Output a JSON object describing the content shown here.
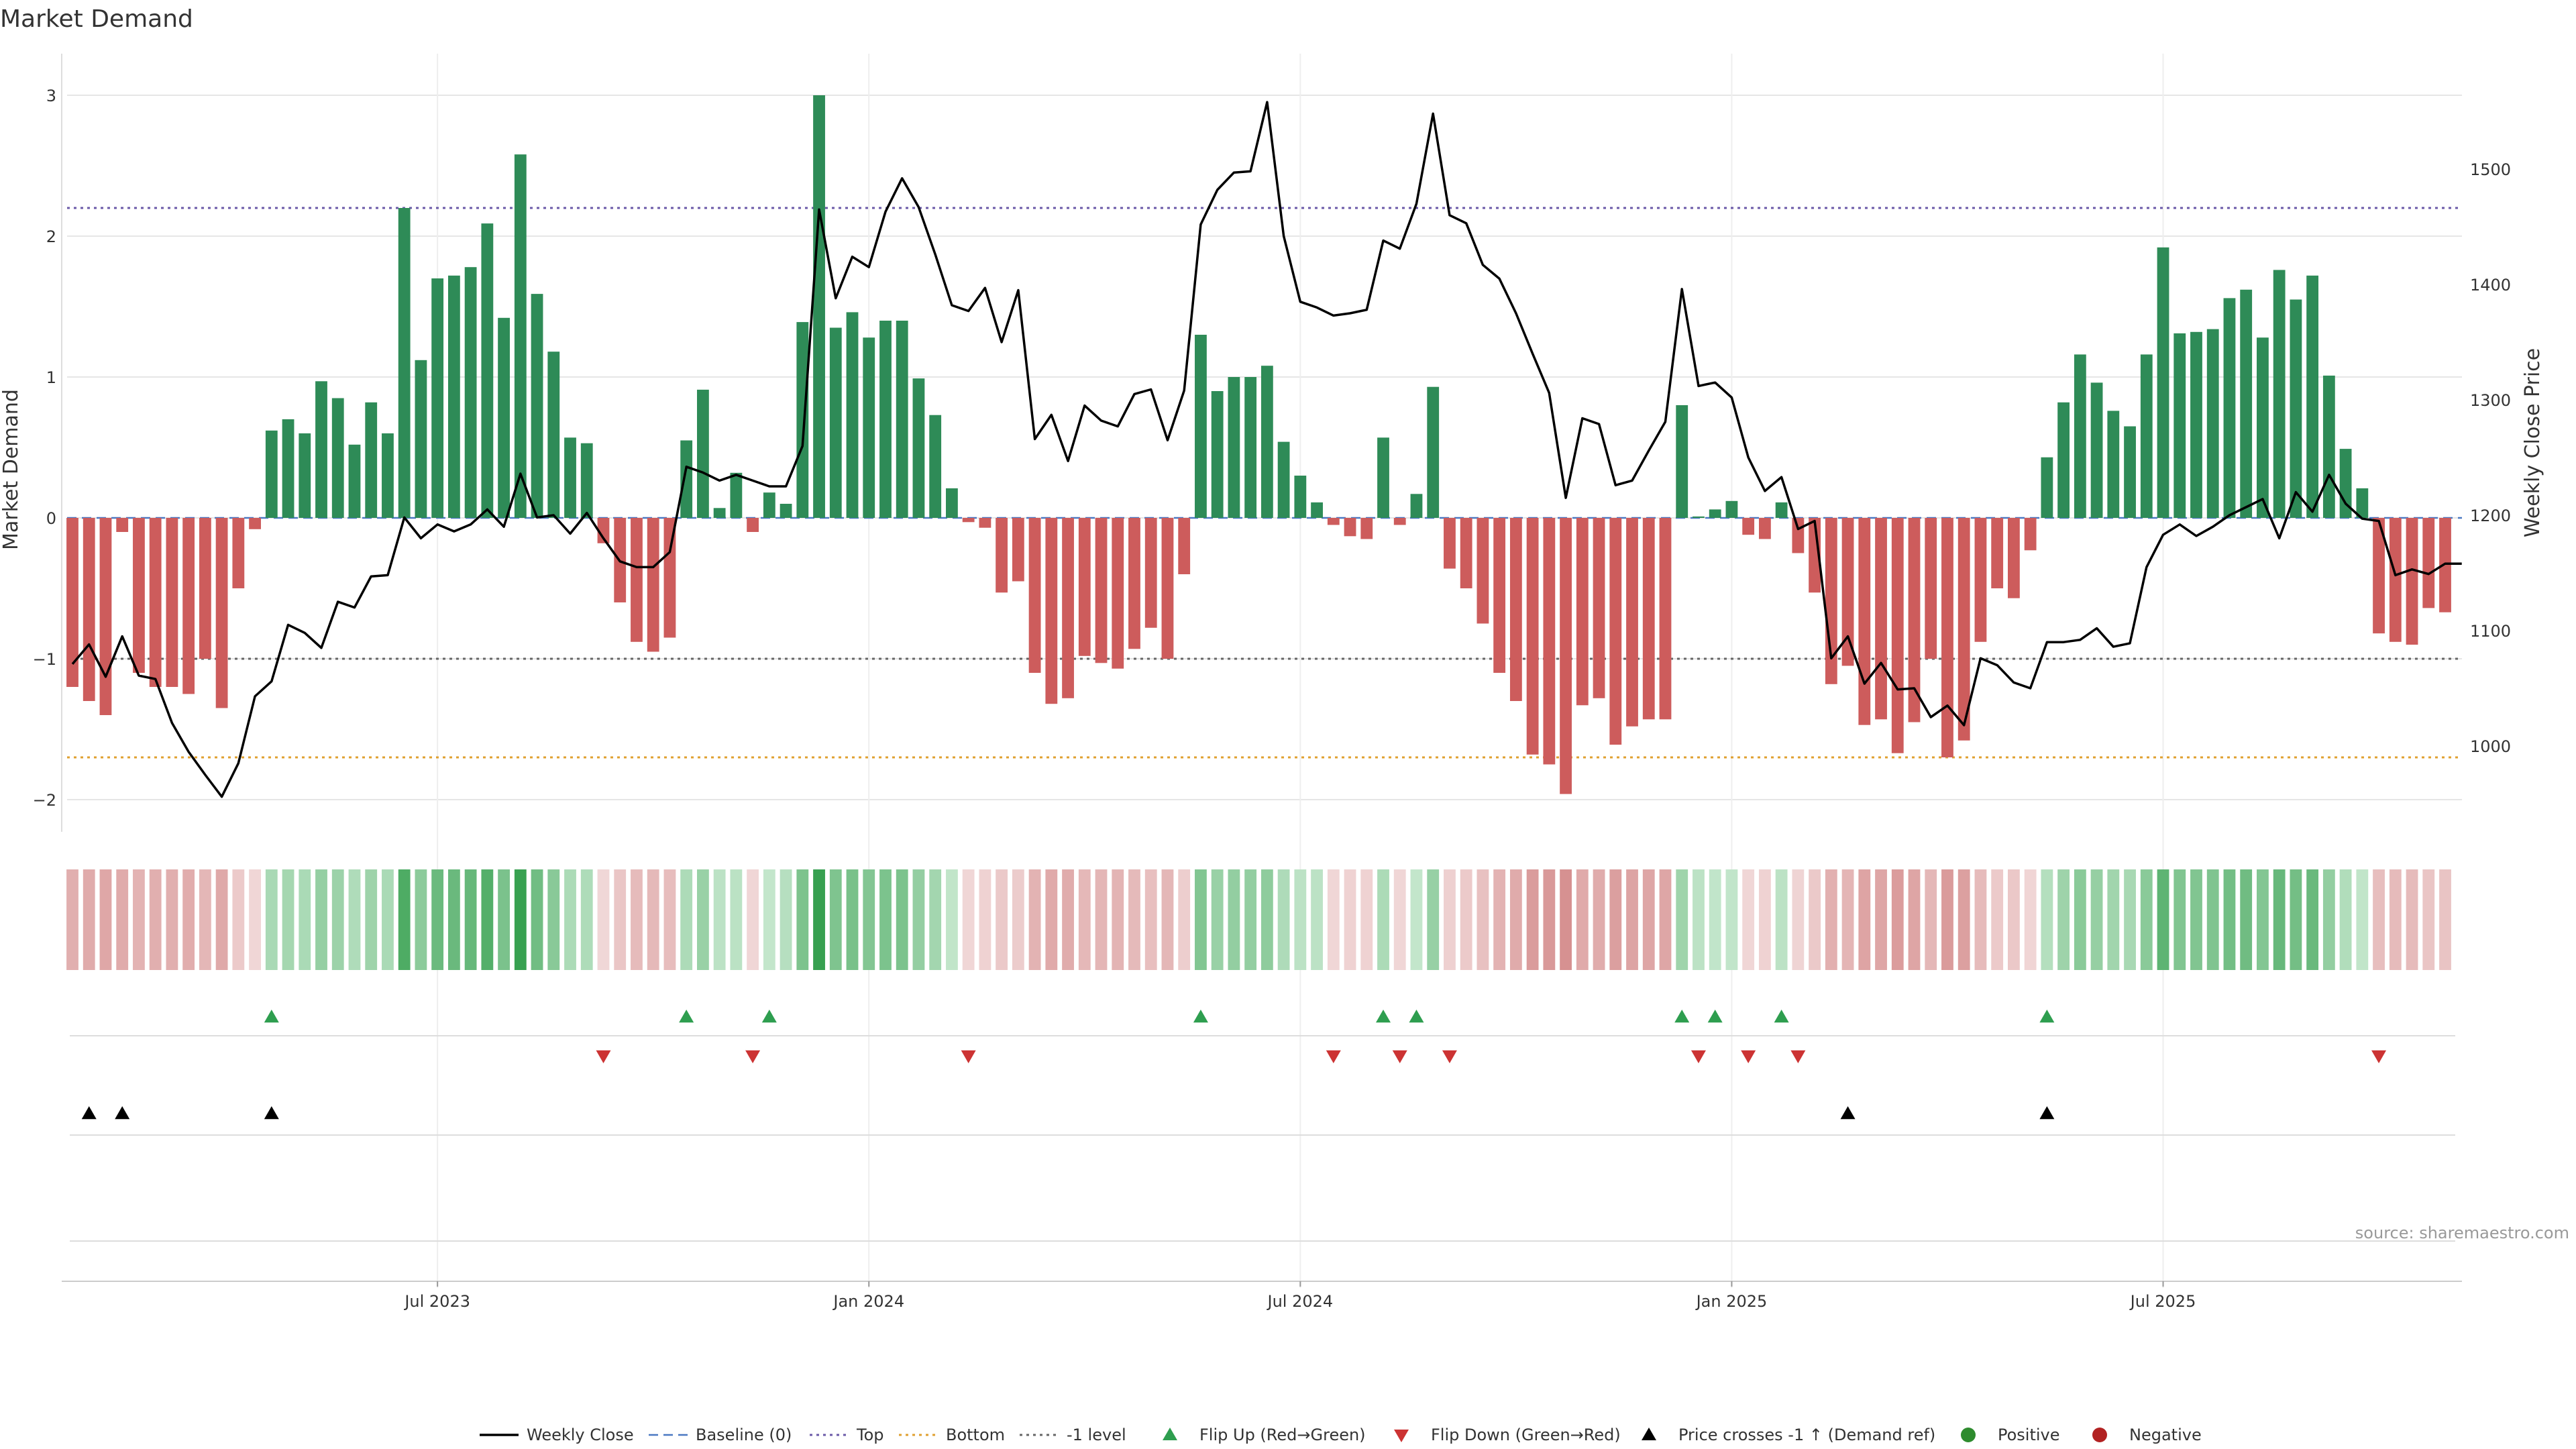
{
  "chart_data": {
    "type": "bar",
    "title": "Market Demand",
    "ylabel": "Market Demand",
    "y2label": "Weekly Close Price",
    "ylim": [
      -2.25,
      3.15
    ],
    "y2lim": [
      938,
      1578
    ],
    "yticks": [
      3,
      2,
      1,
      0,
      -1,
      -2
    ],
    "yticklabels": [
      "3",
      "2",
      "1",
      "0",
      "−1",
      "−2"
    ],
    "y2ticks": [
      1500,
      1400,
      1300,
      1200,
      1100,
      1000
    ],
    "y2ticklabels": [
      "1500",
      "1400",
      "1300",
      "1200",
      "1100",
      "1000"
    ],
    "xticks": [
      {
        "index": 22,
        "label": "Jul 2023"
      },
      {
        "index": 48,
        "label": "Jan 2024"
      },
      {
        "index": 74,
        "label": "Jul 2024"
      },
      {
        "index": 100,
        "label": "Jan 2025"
      },
      {
        "index": 126,
        "label": "Jul 2025"
      }
    ],
    "reference_lines": [
      {
        "name": "Baseline (0)",
        "value": 0,
        "color": "#4a78c2",
        "style": "dashed"
      },
      {
        "name": "Top",
        "value": 2.2,
        "color": "#6b5aa8",
        "style": "dotted"
      },
      {
        "name": "Bottom",
        "value": -1.7,
        "color": "#e0a030",
        "style": "dotted"
      },
      {
        "name": "-1 level",
        "value": -1.0,
        "color": "#666666",
        "style": "dotted"
      }
    ],
    "demand": [
      -1.2,
      -1.3,
      -1.4,
      -0.1,
      -1.1,
      -1.2,
      -1.2,
      -1.25,
      -1.0,
      -1.35,
      -0.5,
      -0.08,
      0.62,
      0.7,
      0.6,
      0.97,
      0.85,
      0.52,
      0.82,
      0.6,
      2.2,
      1.12,
      1.7,
      1.72,
      1.78,
      2.09,
      1.42,
      2.58,
      1.59,
      1.18,
      0.57,
      0.53,
      -0.18,
      -0.6,
      -0.88,
      -0.95,
      -0.85,
      0.55,
      0.91,
      0.07,
      0.32,
      -0.1,
      0.18,
      0.1,
      1.39,
      3.0,
      1.35,
      1.46,
      1.28,
      1.4,
      1.4,
      0.99,
      0.73,
      0.21,
      -0.03,
      -0.07,
      -0.53,
      -0.45,
      -1.1,
      -1.32,
      -1.28,
      -0.98,
      -1.03,
      -1.07,
      -0.93,
      -0.78,
      -1.0,
      -0.4,
      1.3,
      0.9,
      1.0,
      1.0,
      1.08,
      0.54,
      0.3,
      0.11,
      -0.05,
      -0.13,
      -0.15,
      0.57,
      -0.05,
      0.17,
      0.93,
      -0.36,
      -0.5,
      -0.75,
      -1.1,
      -1.3,
      -1.68,
      -1.75,
      -1.96,
      -1.33,
      -1.28,
      -1.61,
      -1.48,
      -1.43,
      -1.43,
      0.8,
      0.01,
      0.06,
      0.12,
      -0.12,
      -0.15,
      0.11,
      -0.25,
      -0.53,
      -1.18,
      -1.05,
      -1.47,
      -1.43,
      -1.67,
      -1.45,
      -1.0,
      -1.7,
      -1.58,
      -0.88,
      -0.5,
      -0.57,
      -0.23,
      0.43,
      0.82,
      1.16,
      0.96,
      0.76,
      0.65,
      1.16,
      1.92,
      1.31,
      1.32,
      1.34,
      1.56,
      1.62,
      1.28,
      1.76,
      1.55,
      1.72,
      1.01,
      0.49,
      0.21,
      -0.82,
      -0.88,
      -0.9,
      -0.64,
      -0.67
    ],
    "weekly_close": [
      1071,
      1088,
      1060,
      1095,
      1061,
      1058,
      1020,
      995,
      975,
      956,
      985,
      1043,
      1056,
      1105,
      1098,
      1085,
      1125,
      1120,
      1147,
      1148,
      1198,
      1180,
      1192,
      1186,
      1192,
      1205,
      1190,
      1236,
      1198,
      1200,
      1184,
      1202,
      1180,
      1160,
      1155,
      1155,
      1168,
      1242,
      1237,
      1230,
      1235,
      1230,
      1225,
      1225,
      1260,
      1465,
      1388,
      1424,
      1415,
      1463,
      1492,
      1467,
      1426,
      1382,
      1377,
      1397,
      1350,
      1395,
      1266,
      1287,
      1247,
      1295,
      1282,
      1277,
      1305,
      1309,
      1265,
      1308,
      1452,
      1482,
      1497,
      1498,
      1558,
      1442,
      1385,
      1380,
      1373,
      1375,
      1378,
      1438,
      1431,
      1470,
      1548,
      1460,
      1453,
      1417,
      1405,
      1375,
      1340,
      1306,
      1215,
      1284,
      1279,
      1226,
      1230,
      1256,
      1281,
      1396,
      1312,
      1315,
      1302,
      1250,
      1221,
      1233,
      1188,
      1195,
      1076,
      1095,
      1054,
      1072,
      1049,
      1050,
      1025,
      1035,
      1018,
      1076,
      1070,
      1055,
      1050,
      1090,
      1090,
      1092,
      1102,
      1086,
      1089,
      1155,
      1183,
      1192,
      1182,
      1190,
      1200,
      1207,
      1214,
      1180,
      1220,
      1203,
      1235,
      1210,
      1197,
      1195,
      1148,
      1153,
      1149,
      1158,
      1158
    ],
    "heat_strip": [
      -1.2,
      -1.3,
      -1.4,
      -1.3,
      -1.1,
      -1.2,
      -1.2,
      -1.25,
      -1.0,
      -1.35,
      -0.5,
      -0.2,
      0.62,
      0.7,
      0.6,
      0.97,
      0.85,
      0.52,
      0.82,
      0.6,
      2.2,
      1.12,
      1.7,
      1.72,
      1.78,
      2.09,
      1.42,
      2.58,
      1.59,
      1.18,
      0.57,
      0.53,
      -0.18,
      -0.6,
      -0.88,
      -0.95,
      -0.85,
      0.55,
      0.91,
      0.3,
      0.32,
      -0.2,
      0.18,
      0.4,
      1.39,
      3.0,
      1.35,
      1.46,
      1.28,
      1.4,
      1.4,
      0.99,
      0.73,
      0.21,
      -0.2,
      -0.3,
      -0.53,
      -0.45,
      -1.1,
      -1.32,
      -1.28,
      -0.98,
      -1.03,
      -1.07,
      -0.93,
      -0.78,
      -1.0,
      -0.4,
      1.3,
      0.9,
      1.0,
      1.0,
      1.08,
      0.54,
      0.3,
      0.3,
      -0.2,
      -0.3,
      -0.3,
      0.57,
      -0.2,
      0.17,
      0.93,
      -0.36,
      -0.5,
      -0.75,
      -1.1,
      -1.3,
      -1.68,
      -1.75,
      -1.96,
      -1.33,
      -1.28,
      -1.61,
      -1.48,
      -1.43,
      -1.43,
      0.8,
      0.3,
      0.2,
      0.2,
      -0.2,
      -0.3,
      0.3,
      -0.25,
      -0.53,
      -1.18,
      -1.05,
      -1.47,
      -1.43,
      -1.67,
      -1.45,
      -1.0,
      -1.7,
      -1.58,
      -0.88,
      -0.5,
      -0.57,
      -0.23,
      0.43,
      0.82,
      1.16,
      0.96,
      0.76,
      0.65,
      1.16,
      1.92,
      1.31,
      1.32,
      1.34,
      1.56,
      1.62,
      1.28,
      1.76,
      1.55,
      1.72,
      1.01,
      0.49,
      0.21,
      -0.82,
      -0.88,
      -0.9,
      -0.64,
      -0.67
    ],
    "flip_up": [
      12,
      37,
      42,
      68,
      79,
      81,
      97,
      99,
      103,
      119
    ],
    "flip_down": [
      32,
      41,
      54,
      76,
      80,
      83,
      98,
      101,
      104,
      139
    ],
    "price_cross": [
      1,
      3,
      12,
      107,
      119
    ],
    "legend": [
      {
        "label": "Weekly Close",
        "symbol": "line",
        "color": "#000000"
      },
      {
        "label": "Baseline (0)",
        "symbol": "dash",
        "color": "#4a78c2"
      },
      {
        "label": "Top",
        "symbol": "dot",
        "color": "#6b5aa8"
      },
      {
        "label": "Bottom",
        "symbol": "dot",
        "color": "#e0a030"
      },
      {
        "label": "-1 level",
        "symbol": "dot",
        "color": "#666666"
      },
      {
        "label": "Flip Up (Red→Green)",
        "symbol": "triangle-up",
        "color": "#2e9e4f"
      },
      {
        "label": "Flip Down (Green→Red)",
        "symbol": "triangle-down",
        "color": "#cc3333"
      },
      {
        "label": "Price crosses -1 ↑ (Demand ref)",
        "symbol": "triangle-up",
        "color": "#000000"
      },
      {
        "label": "Positive",
        "symbol": "circle",
        "color": "#2e8b2e"
      },
      {
        "label": "Negative",
        "symbol": "circle",
        "color": "#b22222"
      }
    ]
  },
  "colors": {
    "positive_bar": "#2e8b57",
    "negative_bar": "#cd5c5c",
    "grid": "#e6e6e6",
    "flip_up": "#2e9e4f",
    "flip_down": "#cc3333",
    "price_cross": "#000000",
    "price_line": "#000000"
  },
  "source": "source: sharemaestro.com"
}
